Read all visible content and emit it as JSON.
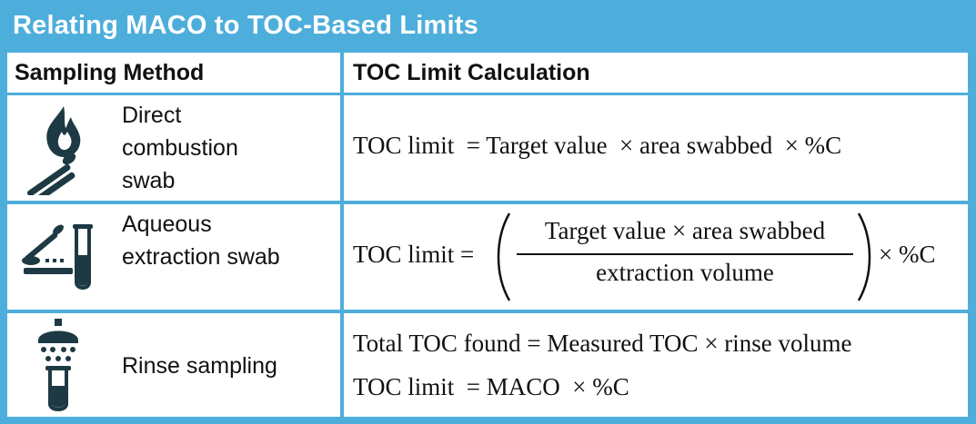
{
  "title": "Relating MACO to TOC-Based Limits",
  "header": {
    "col1": "Sampling Method",
    "col2": "TOC Limit Calculation"
  },
  "rows": [
    {
      "method_lines": [
        "Direct",
        "combustion",
        "swab"
      ],
      "icon": "flame-swab-icon",
      "formula": "TOC limit  = Target value  × area swabbed  × %C"
    },
    {
      "method_lines": [
        "Aqueous",
        "extraction swab"
      ],
      "icon": "swab-test-tube-icon",
      "formula_lhs": "TOC limit =",
      "numerator": "Target value × area swabbed",
      "denominator": "extraction volume",
      "formula_rhs": "× %C"
    },
    {
      "method_lines": [
        "Rinse sampling"
      ],
      "icon": "shower-test-tube-icon",
      "formula_line1": "Total TOC found = Measured TOC × rinse volume",
      "formula_line2": "TOC limit  = MACO  × %C"
    }
  ],
  "colors": {
    "frame": "#4eaedb",
    "text": "#111111",
    "title_text": "#ffffff"
  }
}
